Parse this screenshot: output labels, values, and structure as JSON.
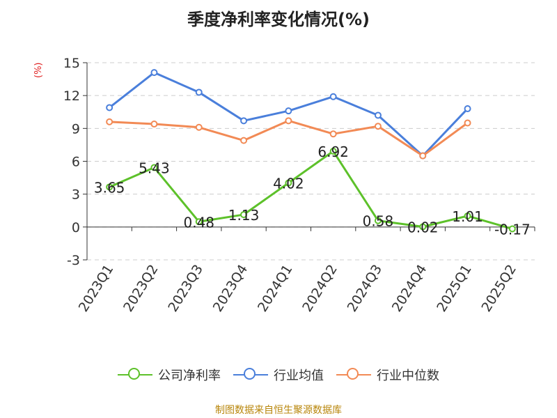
{
  "title": "季度净利率变化情况(%)",
  "unit_label": "(%)",
  "source": "制图数据来自恒生聚源数据库",
  "legend": [
    {
      "name": "公司净利率",
      "color": "#5dc12a"
    },
    {
      "name": "行业均值",
      "color": "#4a7fdb"
    },
    {
      "name": "行业中位数",
      "color": "#f28a55"
    }
  ],
  "chart_data": {
    "type": "line",
    "title": "季度净利率变化情况(%)",
    "ylabel": "(%)",
    "xlabel": "",
    "ylim": [
      -3,
      15
    ],
    "yticks": [
      -3,
      0,
      3,
      6,
      9,
      12,
      15
    ],
    "grid": true,
    "legend_position": "bottom",
    "categories": [
      "2023Q1",
      "2023Q2",
      "2023Q3",
      "2023Q4",
      "2024Q1",
      "2024Q2",
      "2024Q3",
      "2024Q4",
      "2025Q1",
      "2025Q2"
    ],
    "series": [
      {
        "name": "公司净利率",
        "color": "#5dc12a",
        "labeled": true,
        "values": [
          3.65,
          5.43,
          0.48,
          1.13,
          4.02,
          6.92,
          0.58,
          0.02,
          1.01,
          -0.17
        ]
      },
      {
        "name": "行业均值",
        "color": "#4a7fdb",
        "labeled": false,
        "values": [
          10.9,
          14.1,
          12.3,
          9.7,
          10.6,
          11.9,
          10.2,
          6.5,
          10.8,
          null
        ]
      },
      {
        "name": "行业中位数",
        "color": "#f28a55",
        "labeled": false,
        "values": [
          9.6,
          9.4,
          9.1,
          7.9,
          9.7,
          8.5,
          9.2,
          6.5,
          9.5,
          null
        ]
      }
    ]
  }
}
